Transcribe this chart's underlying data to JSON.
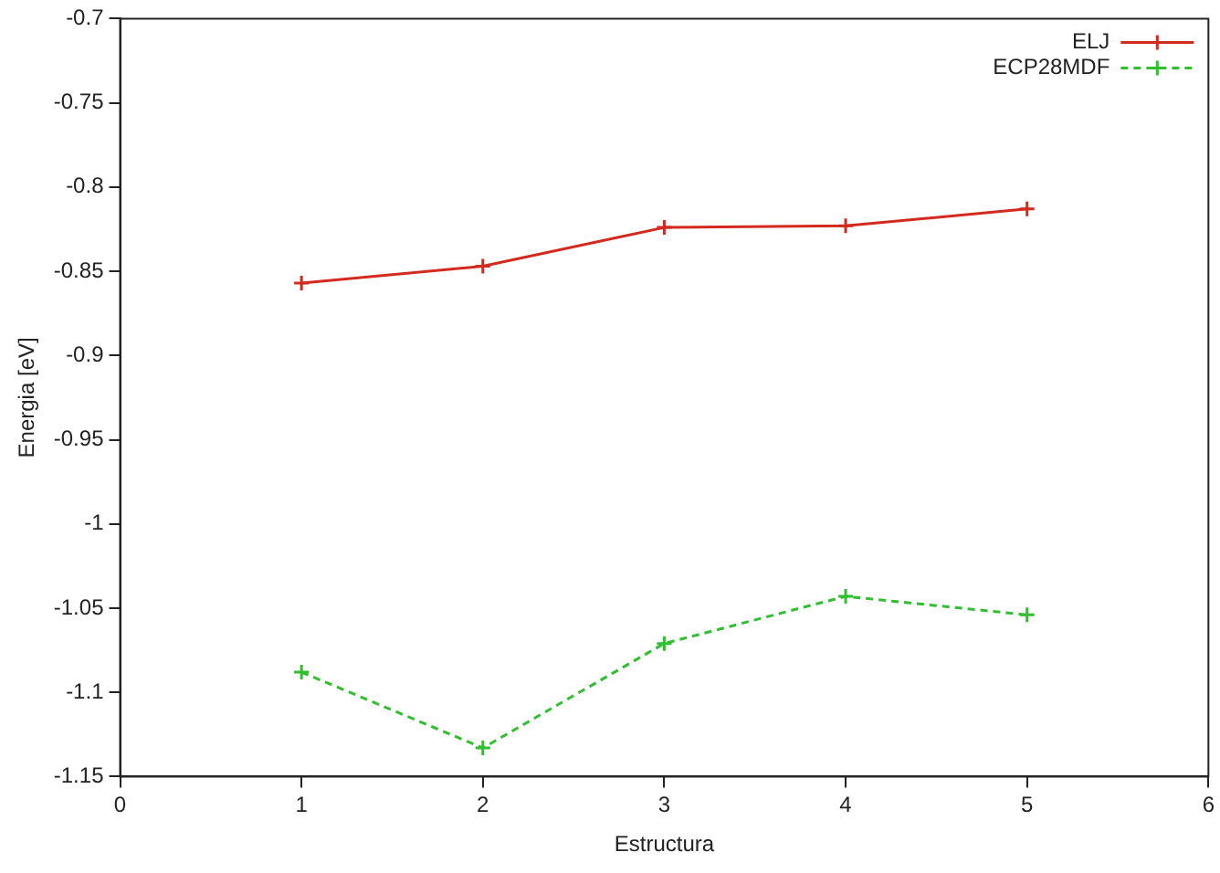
{
  "chart_data": {
    "type": "line",
    "xlabel": "Estructura",
    "ylabel": "Energia [eV]",
    "x": [
      1,
      2,
      3,
      4,
      5
    ],
    "series": [
      {
        "name": "ELJ",
        "color": "#d42a1e",
        "values": [
          -0.857,
          -0.847,
          -0.824,
          -0.823,
          -0.813
        ],
        "marker": "cross",
        "line_style": "solid"
      },
      {
        "name": "ECP28MDF",
        "color": "#2fbf2f",
        "values": [
          -1.088,
          -1.133,
          -1.071,
          -1.043,
          -1.054
        ],
        "marker": "cross",
        "line_style": "dashed"
      }
    ],
    "xlim": [
      0,
      6
    ],
    "xticks": [
      0,
      1,
      2,
      3,
      4,
      5,
      6
    ],
    "ylim": [
      -1.15,
      -0.7
    ],
    "yticks": [
      -1.15,
      -1.1,
      -1.05,
      -1,
      -0.95,
      -0.9,
      -0.85,
      -0.8,
      -0.75,
      -0.7
    ],
    "grid": false,
    "legend": "top right"
  }
}
